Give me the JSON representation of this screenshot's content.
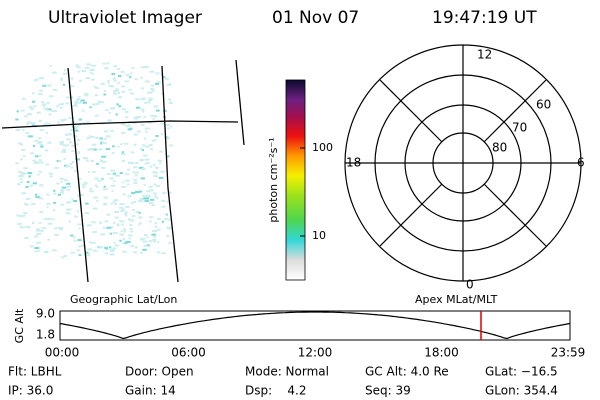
{
  "header": {
    "title": "Ultraviolet Imager",
    "date": "01 Nov 07",
    "time": "19:47:19 UT"
  },
  "image_panel": {
    "label": "Geographic Lat/Lon"
  },
  "colorbar": {
    "label": "photon cm⁻²s⁻¹",
    "ticks": [
      "100",
      "10"
    ]
  },
  "polar_panel": {
    "label": "Apex MLat/MLT",
    "hours": [
      "12",
      "18",
      "6",
      "0"
    ],
    "latitudes": [
      "60",
      "70",
      "80"
    ]
  },
  "altitude_plot": {
    "ylabel": "GC Alt",
    "yticks": [
      "9.0",
      "1.8"
    ],
    "xticks": [
      "00:00",
      "06:00",
      "12:00",
      "18:00",
      "23:59"
    ]
  },
  "status": {
    "rows": [
      [
        "Flt: LBHL",
        "Door: Open",
        "Mode: Normal",
        "GC Alt: 4.0 Re",
        "GLat: −16.5"
      ],
      [
        "IP: 36.0",
        "Gain: 14",
        "Dsp:    4.2",
        "Seq: 39",
        "GLon: 354.4"
      ]
    ]
  }
}
